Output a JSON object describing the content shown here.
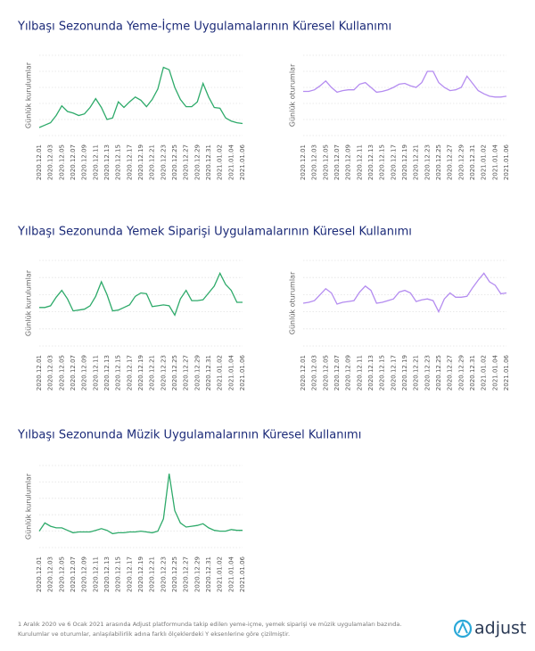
{
  "chart_data": [
    {
      "type": "line",
      "title": "Yılbaşı Sezonunda Yeme-İçme Uygulamalarının Küresel Kullanımı",
      "y_label": "Günlük kurulumlar",
      "categories": [
        "2020.12.01",
        null,
        "2020.12.03",
        null,
        "2020.12.05",
        null,
        "2020.12.07",
        null,
        "2020.12.09",
        null,
        "2020.12.11",
        null,
        "2020.12.13",
        null,
        "2020.12.15",
        null,
        "2020.12.17",
        null,
        "2020.12.19",
        null,
        "2020.12.21",
        null,
        "2020.12.23",
        null,
        "2020.12.25",
        null,
        "2020.12.27",
        null,
        "2020.12.29",
        null,
        "2020.12.31",
        null,
        "2021.01.02",
        null,
        "2021.01.04",
        null,
        "2021.01.06"
      ],
      "values": [
        10,
        13,
        16,
        25,
        37,
        30,
        28,
        25,
        27,
        35,
        46,
        35,
        20,
        22,
        42,
        35,
        42,
        48,
        44,
        36,
        45,
        58,
        85,
        82,
        60,
        45,
        36,
        36,
        42,
        65,
        48,
        35,
        34,
        22,
        18,
        16,
        15
      ],
      "color": "#2eaa6a",
      "ylim": [
        0,
        100
      ],
      "yticks": [
        0,
        20,
        40,
        60,
        80,
        100
      ],
      "grid": true
    },
    {
      "type": "line",
      "y_label": "Günlük oturumlar",
      "categories": [
        "2020.12.01",
        null,
        "2020.12.03",
        null,
        "2020.12.05",
        null,
        "2020.12.07",
        null,
        "2020.12.09",
        null,
        "2020.12.11",
        null,
        "2020.12.13",
        null,
        "2020.12.15",
        null,
        "2020.12.17",
        null,
        "2020.12.19",
        null,
        "2020.12.21",
        null,
        "2020.12.23",
        null,
        "2020.12.25",
        null,
        "2020.12.27",
        null,
        "2020.12.29",
        null,
        "2020.12.31",
        null,
        "2021.01.02",
        null,
        "2021.01.04",
        null,
        "2021.01.06"
      ],
      "values": [
        55,
        55,
        57,
        62,
        68,
        60,
        54,
        56,
        57,
        57,
        64,
        66,
        60,
        54,
        55,
        57,
        60,
        64,
        65,
        62,
        60,
        66,
        80,
        80,
        66,
        60,
        56,
        57,
        60,
        74,
        65,
        56,
        52,
        49,
        48,
        48,
        49
      ],
      "color": "#b48cf0",
      "ylim": [
        0,
        100
      ],
      "yticks": [
        0,
        20,
        40,
        60,
        80,
        100
      ],
      "grid": true
    },
    {
      "type": "line",
      "title": "Yılbaşı Sezonunda Yemek Siparişi Uygulamalarının Küresel Kullanımı",
      "y_label": "Günlük kurulumlar",
      "categories": [
        "2020.12.01",
        null,
        "2020.12.03",
        null,
        "2020.12.05",
        null,
        "2020.12.07",
        null,
        "2020.12.09",
        null,
        "2020.12.11",
        null,
        "2020.12.13",
        null,
        "2020.12.15",
        null,
        "2020.12.17",
        null,
        "2020.12.19",
        null,
        "2020.12.21",
        null,
        "2020.12.23",
        null,
        "2020.12.25",
        null,
        "2020.12.27",
        null,
        "2020.12.29",
        null,
        "2020.12.31",
        null,
        "2021.01.02",
        null,
        "2021.01.04",
        null,
        "2021.01.06"
      ],
      "values": [
        45,
        45,
        47,
        57,
        65,
        55,
        41,
        42,
        43,
        47,
        58,
        75,
        60,
        41,
        42,
        45,
        48,
        58,
        62,
        61,
        46,
        47,
        48,
        47,
        36,
        55,
        65,
        53,
        53,
        54,
        62,
        70,
        85,
        72,
        65,
        51,
        51
      ],
      "color": "#2eaa6a",
      "ylim": [
        0,
        100
      ],
      "yticks": [
        0,
        20,
        40,
        60,
        80,
        100
      ],
      "grid": true
    },
    {
      "type": "line",
      "y_label": "Günlük oturumlar",
      "categories": [
        "2020.12.01",
        null,
        "2020.12.03",
        null,
        "2020.12.05",
        null,
        "2020.12.07",
        null,
        "2020.12.09",
        null,
        "2020.12.11",
        null,
        "2020.12.13",
        null,
        "2020.12.15",
        null,
        "2020.12.17",
        null,
        "2020.12.19",
        null,
        "2020.12.21",
        null,
        "2020.12.23",
        null,
        "2020.12.25",
        null,
        "2020.12.27",
        null,
        "2020.12.29",
        null,
        "2020.12.31",
        null,
        "2021.01.02",
        null,
        "2021.01.04",
        null,
        "2021.01.06"
      ],
      "values": [
        50,
        51,
        53,
        60,
        67,
        62,
        49,
        51,
        52,
        53,
        63,
        70,
        65,
        50,
        51,
        53,
        55,
        63,
        65,
        62,
        52,
        54,
        55,
        53,
        40,
        55,
        62,
        57,
        57,
        58,
        68,
        77,
        85,
        75,
        71,
        61,
        62
      ],
      "color": "#b48cf0",
      "ylim": [
        0,
        100
      ],
      "yticks": [
        0,
        20,
        40,
        60,
        80,
        100
      ],
      "grid": true
    },
    {
      "type": "line",
      "title": "Yılbaşı Sezonunda Müzik Uygulamalarının Küresel Kullanımı",
      "y_label": "Günlük kurulumlar",
      "categories": [
        "2020.12.01",
        null,
        "2020.12.03",
        null,
        "2020.12.05",
        null,
        "2020.12.07",
        null,
        "2020.12.09",
        null,
        "2020.12.11",
        null,
        "2020.12.13",
        null,
        "2020.12.15",
        null,
        "2020.12.17",
        null,
        "2020.12.19",
        null,
        "2020.12.21",
        null,
        "2020.12.23",
        null,
        "2020.12.25",
        null,
        "2020.12.27",
        null,
        "2020.12.29",
        null,
        "2020.12.31",
        null,
        "2021.01.02",
        null,
        "2021.01.04",
        null,
        "2021.01.06"
      ],
      "values": [
        20,
        30,
        26,
        24,
        24,
        21,
        18,
        19,
        19,
        19,
        21,
        23,
        21,
        17,
        18,
        18,
        19,
        19,
        20,
        19,
        18,
        20,
        35,
        90,
        45,
        30,
        25,
        26,
        27,
        29,
        24,
        21,
        20,
        20,
        22,
        21,
        21
      ],
      "color": "#2eaa6a",
      "ylim": [
        0,
        100
      ],
      "yticks": [
        0,
        20,
        40,
        60,
        80,
        100
      ],
      "grid": true
    }
  ],
  "footnote": [
    "1 Aralık 2020 ve 6 Ocak 2021 arasında Adjust platformunda takip edilen yeme-içme, yemek siparişi ve müzik uygulamaları bazında.",
    "Kurulumlar ve oturumlar, anlaşılabilirlik adına farklı ölçeklerdeki Y eksenlerine göre çizilmiştir."
  ],
  "logo": "adjust"
}
